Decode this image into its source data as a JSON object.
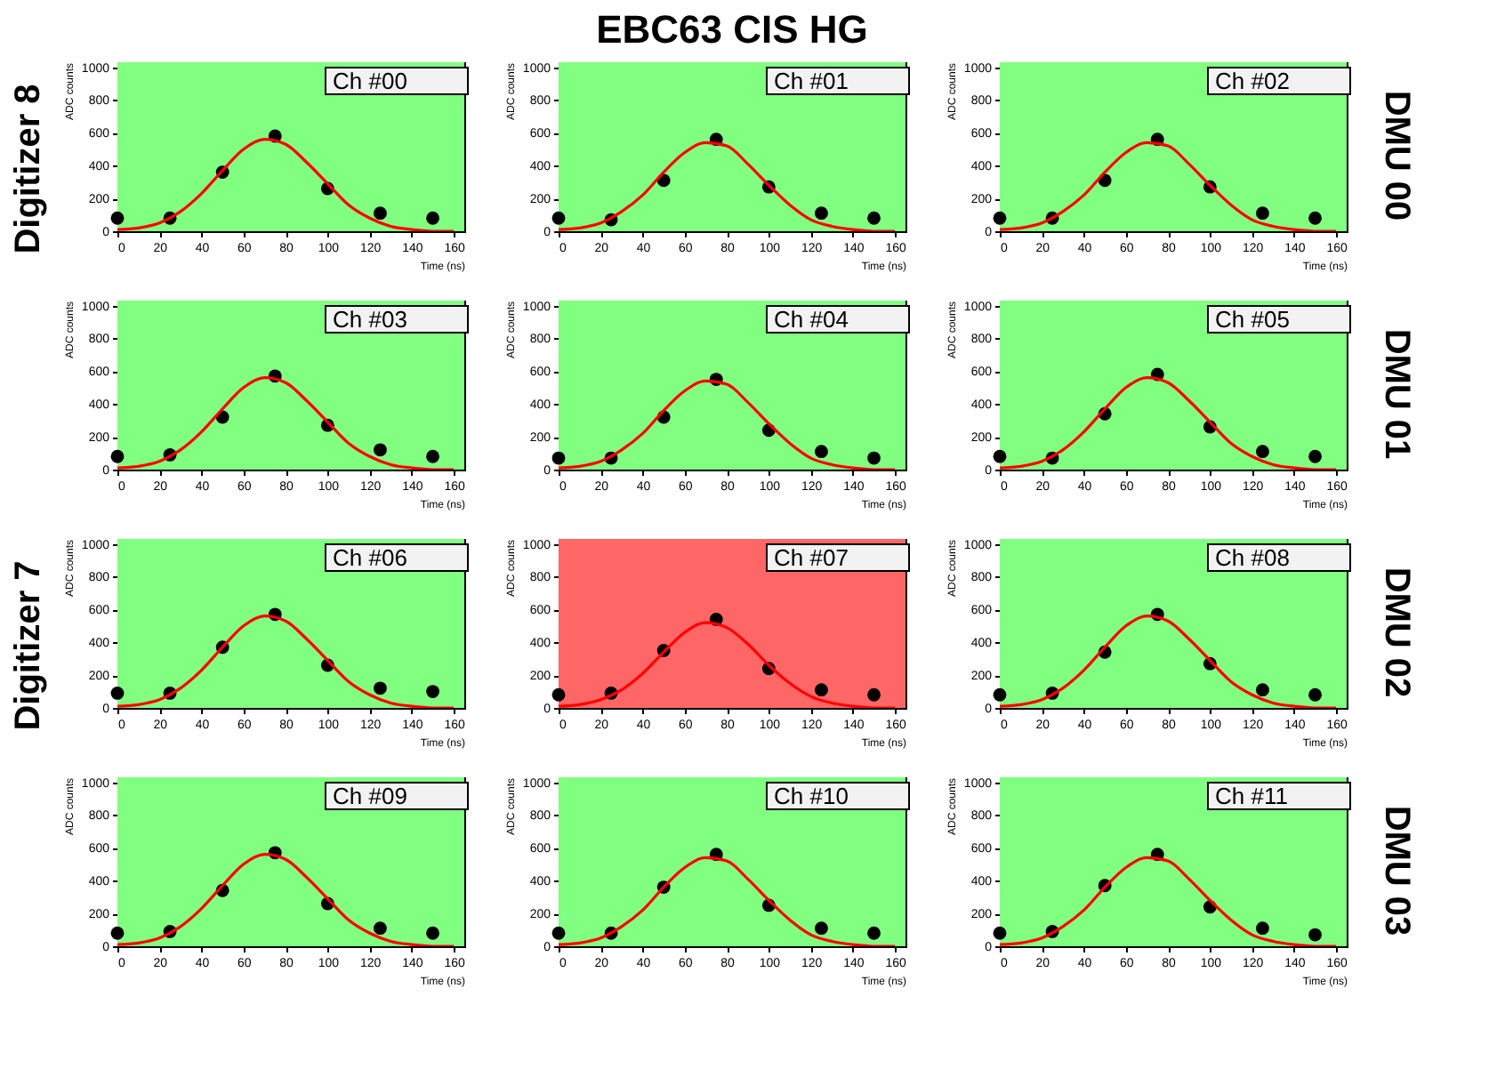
{
  "chart_data": [
    {
      "type": "scatter",
      "title": "Ch #00",
      "xlabel": "Time (ns)",
      "ylabel": "ADC counts",
      "annotations": [
        "Digitizer 8"
      ],
      "marker": "circle",
      "xlim": [
        0,
        165
      ],
      "ylim": [
        0,
        1030
      ],
      "xticks": [
        0,
        20,
        40,
        60,
        80,
        100,
        120,
        140,
        160
      ],
      "yticks": [
        0,
        200,
        400,
        600,
        800,
        1000
      ],
      "bands": [
        {
          "axis": "x",
          "from": 0,
          "to": 165,
          "color": "#80ff80"
        }
      ],
      "series": [
        {
          "color": "#000000",
          "x": [
            0,
            25,
            50,
            75,
            100,
            125,
            150
          ],
          "values": [
            80,
            80,
            360,
            580,
            260,
            110,
            80
          ]
        },
        {
          "type": "line",
          "marker": "none",
          "color": "#ff0000",
          "x": [
            0,
            10,
            20,
            30,
            40,
            50,
            60,
            70,
            80,
            90,
            100,
            110,
            120,
            130,
            140,
            150,
            160
          ],
          "values": [
            10,
            20,
            50,
            120,
            230,
            370,
            500,
            560,
            530,
            420,
            290,
            160,
            80,
            30,
            10,
            0,
            0
          ]
        }
      ]
    },
    {
      "type": "scatter",
      "title": "Ch #01",
      "xlabel": "Time (ns)",
      "ylabel": "ADC counts",
      "annotations": [
        "EBC63 CIS HG"
      ],
      "marker": "circle",
      "xlim": [
        0,
        165
      ],
      "ylim": [
        0,
        1030
      ],
      "xticks": [
        0,
        20,
        40,
        60,
        80,
        100,
        120,
        140,
        160
      ],
      "yticks": [
        0,
        200,
        400,
        600,
        800,
        1000
      ],
      "bands": [
        {
          "axis": "x",
          "from": 0,
          "to": 165,
          "color": "#80ff80"
        }
      ],
      "series": [
        {
          "color": "#000000",
          "x": [
            0,
            25,
            50,
            75,
            100,
            125,
            150
          ],
          "values": [
            80,
            70,
            310,
            560,
            270,
            110,
            80
          ]
        },
        {
          "type": "line",
          "marker": "none",
          "color": "#ff0000",
          "x": [
            0,
            10,
            20,
            30,
            40,
            50,
            60,
            70,
            80,
            90,
            100,
            110,
            120,
            130,
            140,
            150,
            160
          ],
          "values": [
            10,
            20,
            50,
            120,
            220,
            360,
            480,
            540,
            520,
            410,
            280,
            160,
            70,
            30,
            10,
            0,
            0
          ]
        }
      ]
    },
    {
      "type": "scatter",
      "title": "Ch #02",
      "xlabel": "Time (ns)",
      "ylabel": "ADC counts",
      "annotations": [
        "DMU 00"
      ],
      "marker": "circle",
      "xlim": [
        0,
        165
      ],
      "ylim": [
        0,
        1030
      ],
      "xticks": [
        0,
        20,
        40,
        60,
        80,
        100,
        120,
        140,
        160
      ],
      "yticks": [
        0,
        200,
        400,
        600,
        800,
        1000
      ],
      "bands": [
        {
          "axis": "x",
          "from": 0,
          "to": 165,
          "color": "#80ff80"
        }
      ],
      "series": [
        {
          "color": "#000000",
          "x": [
            0,
            25,
            50,
            75,
            100,
            125,
            150
          ],
          "values": [
            80,
            80,
            310,
            560,
            270,
            110,
            80
          ]
        },
        {
          "type": "line",
          "marker": "none",
          "color": "#ff0000",
          "x": [
            0,
            10,
            20,
            30,
            40,
            50,
            60,
            70,
            80,
            90,
            100,
            110,
            120,
            130,
            140,
            150,
            160
          ],
          "values": [
            10,
            20,
            50,
            120,
            220,
            360,
            480,
            540,
            520,
            410,
            280,
            160,
            70,
            30,
            10,
            0,
            0
          ]
        }
      ]
    },
    {
      "type": "scatter",
      "title": "Ch #03",
      "xlabel": "Time (ns)",
      "ylabel": "ADC counts",
      "marker": "circle",
      "xlim": [
        0,
        165
      ],
      "ylim": [
        0,
        1030
      ],
      "xticks": [
        0,
        20,
        40,
        60,
        80,
        100,
        120,
        140,
        160
      ],
      "yticks": [
        0,
        200,
        400,
        600,
        800,
        1000
      ],
      "bands": [
        {
          "axis": "x",
          "from": 0,
          "to": 165,
          "color": "#80ff80"
        }
      ],
      "series": [
        {
          "color": "#000000",
          "x": [
            0,
            25,
            50,
            75,
            100,
            125,
            150
          ],
          "values": [
            80,
            90,
            320,
            570,
            270,
            120,
            80
          ]
        },
        {
          "type": "line",
          "marker": "none",
          "color": "#ff0000",
          "x": [
            0,
            10,
            20,
            30,
            40,
            50,
            60,
            70,
            80,
            90,
            100,
            110,
            120,
            130,
            140,
            150,
            160
          ],
          "values": [
            10,
            20,
            50,
            120,
            230,
            370,
            500,
            560,
            530,
            420,
            290,
            160,
            80,
            30,
            10,
            0,
            0
          ]
        }
      ]
    },
    {
      "type": "scatter",
      "title": "Ch #04",
      "xlabel": "Time (ns)",
      "ylabel": "ADC counts",
      "marker": "circle",
      "xlim": [
        0,
        165
      ],
      "ylim": [
        0,
        1030
      ],
      "xticks": [
        0,
        20,
        40,
        60,
        80,
        100,
        120,
        140,
        160
      ],
      "yticks": [
        0,
        200,
        400,
        600,
        800,
        1000
      ],
      "bands": [
        {
          "axis": "x",
          "from": 0,
          "to": 165,
          "color": "#80ff80"
        }
      ],
      "series": [
        {
          "color": "#000000",
          "x": [
            0,
            25,
            50,
            75,
            100,
            125,
            150
          ],
          "values": [
            70,
            70,
            320,
            550,
            240,
            110,
            70
          ]
        },
        {
          "type": "line",
          "marker": "none",
          "color": "#ff0000",
          "x": [
            0,
            10,
            20,
            30,
            40,
            50,
            60,
            70,
            80,
            90,
            100,
            110,
            120,
            130,
            140,
            150,
            160
          ],
          "values": [
            10,
            20,
            50,
            120,
            220,
            360,
            480,
            540,
            520,
            410,
            280,
            160,
            70,
            30,
            10,
            0,
            0
          ]
        }
      ]
    },
    {
      "type": "scatter",
      "title": "Ch #05",
      "xlabel": "Time (ns)",
      "ylabel": "ADC counts",
      "annotations": [
        "DMU 01"
      ],
      "marker": "circle",
      "xlim": [
        0,
        165
      ],
      "ylim": [
        0,
        1030
      ],
      "xticks": [
        0,
        20,
        40,
        60,
        80,
        100,
        120,
        140,
        160
      ],
      "yticks": [
        0,
        200,
        400,
        600,
        800,
        1000
      ],
      "bands": [
        {
          "axis": "x",
          "from": 0,
          "to": 165,
          "color": "#80ff80"
        }
      ],
      "series": [
        {
          "color": "#000000",
          "x": [
            0,
            25,
            50,
            75,
            100,
            125,
            150
          ],
          "values": [
            80,
            70,
            340,
            580,
            260,
            110,
            80
          ]
        },
        {
          "type": "line",
          "marker": "none",
          "color": "#ff0000",
          "x": [
            0,
            10,
            20,
            30,
            40,
            50,
            60,
            70,
            80,
            90,
            100,
            110,
            120,
            130,
            140,
            150,
            160
          ],
          "values": [
            10,
            20,
            50,
            120,
            230,
            370,
            500,
            560,
            530,
            420,
            290,
            160,
            80,
            30,
            10,
            0,
            0
          ]
        }
      ]
    },
    {
      "type": "scatter",
      "title": "Ch #06",
      "xlabel": "Time (ns)",
      "ylabel": "ADC counts",
      "annotations": [
        "Digitizer 7"
      ],
      "marker": "circle",
      "xlim": [
        0,
        165
      ],
      "ylim": [
        0,
        1030
      ],
      "xticks": [
        0,
        20,
        40,
        60,
        80,
        100,
        120,
        140,
        160
      ],
      "yticks": [
        0,
        200,
        400,
        600,
        800,
        1000
      ],
      "bands": [
        {
          "axis": "x",
          "from": 0,
          "to": 165,
          "color": "#80ff80"
        }
      ],
      "series": [
        {
          "color": "#000000",
          "x": [
            0,
            25,
            50,
            75,
            100,
            125,
            150
          ],
          "values": [
            90,
            90,
            370,
            570,
            260,
            120,
            100
          ]
        },
        {
          "type": "line",
          "marker": "none",
          "color": "#ff0000",
          "x": [
            0,
            10,
            20,
            30,
            40,
            50,
            60,
            70,
            80,
            90,
            100,
            110,
            120,
            130,
            140,
            150,
            160
          ],
          "values": [
            10,
            20,
            50,
            120,
            230,
            370,
            500,
            560,
            530,
            420,
            290,
            160,
            80,
            30,
            10,
            0,
            0
          ]
        }
      ]
    },
    {
      "type": "scatter",
      "title": "Ch #07",
      "xlabel": "Time (ns)",
      "ylabel": "ADC counts",
      "marker": "circle",
      "xlim": [
        0,
        165
      ],
      "ylim": [
        0,
        1030
      ],
      "xticks": [
        0,
        20,
        40,
        60,
        80,
        100,
        120,
        140,
        160
      ],
      "yticks": [
        0,
        200,
        400,
        600,
        800,
        1000
      ],
      "bands": [
        {
          "axis": "x",
          "from": 0,
          "to": 165,
          "color": "#ff6666"
        }
      ],
      "series": [
        {
          "color": "#000000",
          "x": [
            0,
            25,
            50,
            75,
            100,
            125,
            150
          ],
          "values": [
            80,
            90,
            350,
            540,
            240,
            110,
            80
          ]
        },
        {
          "type": "line",
          "marker": "none",
          "color": "#ff0000",
          "x": [
            0,
            10,
            20,
            30,
            40,
            50,
            60,
            70,
            80,
            90,
            100,
            110,
            120,
            130,
            140,
            150,
            160
          ],
          "values": [
            10,
            20,
            50,
            110,
            210,
            340,
            460,
            520,
            490,
            390,
            260,
            150,
            70,
            30,
            10,
            0,
            0
          ]
        }
      ]
    },
    {
      "type": "scatter",
      "title": "Ch #08",
      "xlabel": "Time (ns)",
      "ylabel": "ADC counts",
      "annotations": [
        "DMU 02"
      ],
      "marker": "circle",
      "xlim": [
        0,
        165
      ],
      "ylim": [
        0,
        1030
      ],
      "xticks": [
        0,
        20,
        40,
        60,
        80,
        100,
        120,
        140,
        160
      ],
      "yticks": [
        0,
        200,
        400,
        600,
        800,
        1000
      ],
      "bands": [
        {
          "axis": "x",
          "from": 0,
          "to": 165,
          "color": "#80ff80"
        }
      ],
      "series": [
        {
          "color": "#000000",
          "x": [
            0,
            25,
            50,
            75,
            100,
            125,
            150
          ],
          "values": [
            80,
            90,
            340,
            570,
            270,
            110,
            80
          ]
        },
        {
          "type": "line",
          "marker": "none",
          "color": "#ff0000",
          "x": [
            0,
            10,
            20,
            30,
            40,
            50,
            60,
            70,
            80,
            90,
            100,
            110,
            120,
            130,
            140,
            150,
            160
          ],
          "values": [
            10,
            20,
            50,
            120,
            230,
            370,
            500,
            560,
            530,
            420,
            290,
            160,
            80,
            30,
            10,
            0,
            0
          ]
        }
      ]
    },
    {
      "type": "scatter",
      "title": "Ch #09",
      "xlabel": "Time (ns)",
      "ylabel": "ADC counts",
      "marker": "circle",
      "xlim": [
        0,
        165
      ],
      "ylim": [
        0,
        1030
      ],
      "xticks": [
        0,
        20,
        40,
        60,
        80,
        100,
        120,
        140,
        160
      ],
      "yticks": [
        0,
        200,
        400,
        600,
        800,
        1000
      ],
      "bands": [
        {
          "axis": "x",
          "from": 0,
          "to": 165,
          "color": "#80ff80"
        }
      ],
      "series": [
        {
          "color": "#000000",
          "x": [
            0,
            25,
            50,
            75,
            100,
            125,
            150
          ],
          "values": [
            80,
            90,
            340,
            570,
            260,
            110,
            80
          ]
        },
        {
          "type": "line",
          "marker": "none",
          "color": "#ff0000",
          "x": [
            0,
            10,
            20,
            30,
            40,
            50,
            60,
            70,
            80,
            90,
            100,
            110,
            120,
            130,
            140,
            150,
            160
          ],
          "values": [
            10,
            20,
            50,
            120,
            230,
            370,
            500,
            560,
            530,
            420,
            290,
            160,
            80,
            30,
            10,
            0,
            0
          ]
        }
      ]
    },
    {
      "type": "scatter",
      "title": "Ch #10",
      "xlabel": "Time (ns)",
      "ylabel": "ADC counts",
      "marker": "circle",
      "xlim": [
        0,
        165
      ],
      "ylim": [
        0,
        1030
      ],
      "xticks": [
        0,
        20,
        40,
        60,
        80,
        100,
        120,
        140,
        160
      ],
      "yticks": [
        0,
        200,
        400,
        600,
        800,
        1000
      ],
      "bands": [
        {
          "axis": "x",
          "from": 0,
          "to": 165,
          "color": "#80ff80"
        }
      ],
      "series": [
        {
          "color": "#000000",
          "x": [
            0,
            25,
            50,
            75,
            100,
            125,
            150
          ],
          "values": [
            80,
            80,
            360,
            560,
            250,
            110,
            80
          ]
        },
        {
          "type": "line",
          "marker": "none",
          "color": "#ff0000",
          "x": [
            0,
            10,
            20,
            30,
            40,
            50,
            60,
            70,
            80,
            90,
            100,
            110,
            120,
            130,
            140,
            150,
            160
          ],
          "values": [
            10,
            20,
            50,
            120,
            220,
            360,
            480,
            540,
            520,
            410,
            280,
            160,
            70,
            30,
            10,
            0,
            0
          ]
        }
      ]
    },
    {
      "type": "scatter",
      "title": "Ch #11",
      "xlabel": "Time (ns)",
      "ylabel": "ADC counts",
      "annotations": [
        "DMU 03"
      ],
      "marker": "circle",
      "xlim": [
        0,
        165
      ],
      "ylim": [
        0,
        1030
      ],
      "xticks": [
        0,
        20,
        40,
        60,
        80,
        100,
        120,
        140,
        160
      ],
      "yticks": [
        0,
        200,
        400,
        600,
        800,
        1000
      ],
      "bands": [
        {
          "axis": "x",
          "from": 0,
          "to": 165,
          "color": "#80ff80"
        }
      ],
      "series": [
        {
          "color": "#000000",
          "x": [
            0,
            25,
            50,
            75,
            100,
            125,
            150
          ],
          "values": [
            80,
            90,
            370,
            560,
            240,
            110,
            70
          ]
        },
        {
          "type": "line",
          "marker": "none",
          "color": "#ff0000",
          "x": [
            0,
            10,
            20,
            30,
            40,
            50,
            60,
            70,
            80,
            90,
            100,
            110,
            120,
            130,
            140,
            150,
            160
          ],
          "values": [
            10,
            20,
            50,
            120,
            220,
            360,
            480,
            540,
            520,
            410,
            280,
            160,
            70,
            30,
            10,
            0,
            0
          ]
        }
      ]
    }
  ]
}
